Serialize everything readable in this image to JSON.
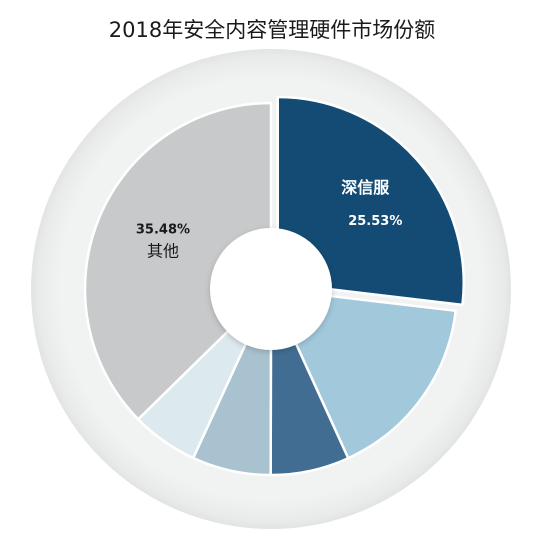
{
  "chart_data": {
    "type": "pie",
    "title": "2018年安全内容管理硬件市场份额",
    "slices": [
      {
        "label": "深信服",
        "value": 25.53,
        "value_text": "25.53%",
        "color": "#134b74",
        "text_color": "#ffffff",
        "exploded": true
      },
      {
        "label": "",
        "value": 15.5,
        "color": "#a2c8dc"
      },
      {
        "label": "",
        "value": 6.5,
        "color": "#416d92"
      },
      {
        "label": "",
        "value": 6.5,
        "color": "#a9c2cf"
      },
      {
        "label": "",
        "value": 5.5,
        "color": "#dce9ef"
      },
      {
        "label": "其他",
        "value": 35.48,
        "value_text": "35.48%",
        "color": "#c7c9ca",
        "text_color": "#1a1a1a"
      }
    ],
    "start_angle": 0,
    "direction": "clockwise",
    "donut": true
  }
}
